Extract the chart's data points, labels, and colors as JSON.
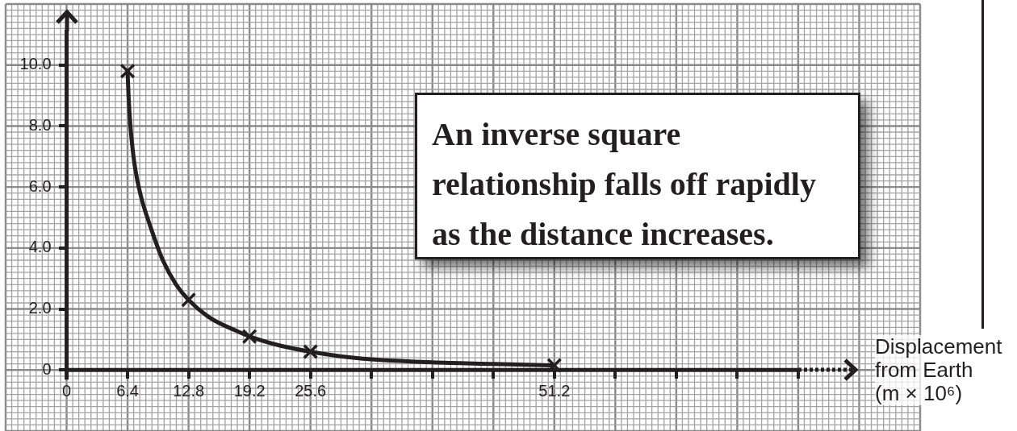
{
  "chart_data": {
    "type": "scatter",
    "x": [
      6.4,
      12.8,
      19.2,
      25.6,
      51.2
    ],
    "series": [
      {
        "color": "#231f20",
        "marker": "cross",
        "values": [
          9.8,
          2.3,
          1.1,
          0.6,
          0.15
        ]
      },
      {
        "type": "line",
        "color": "#231f20",
        "line_style": "solid",
        "x": [
          6.4,
          6.5,
          6.7,
          7.15,
          7.8,
          8.8,
          10.1,
          11.5,
          12.8,
          15.1,
          17.7,
          19.2,
          22.4,
          25.6,
          28.7,
          32,
          38.4,
          44.8,
          51.2
        ],
        "values": [
          9.8,
          9.0,
          8.0,
          6.7,
          5.7,
          4.7,
          3.6,
          2.8,
          2.3,
          1.7,
          1.3,
          1.1,
          0.8,
          0.6,
          0.45,
          0.35,
          0.25,
          0.2,
          0.15
        ]
      }
    ],
    "xlabel": "Displacement from Earth (m × 10⁶)",
    "xlim": [
      -6.4,
      89.6
    ],
    "ylim": [
      -2,
      12
    ],
    "xticks": [
      0,
      6.4,
      12.8,
      19.2,
      25.6,
      {
        "value": 32,
        "label": null
      },
      {
        "value": 38.4,
        "label": null
      },
      {
        "value": 44.8,
        "label": null
      },
      51.2,
      {
        "value": 57.6,
        "label": null
      },
      {
        "value": 64,
        "label": null
      },
      {
        "value": 70.4,
        "label": null
      },
      {
        "value": 76.8,
        "label": null
      }
    ],
    "yticks": [
      0,
      {
        "value": 2,
        "label": "2.0"
      },
      {
        "value": 4,
        "label": "4.0"
      },
      {
        "value": 6,
        "label": "6.0"
      },
      {
        "value": 8,
        "label": "8.0"
      },
      {
        "value": 10,
        "label": "10.0"
      }
    ],
    "grid": true,
    "annotations": [
      "An inverse square relationship falls off rapidly as the distance increases."
    ]
  }
}
